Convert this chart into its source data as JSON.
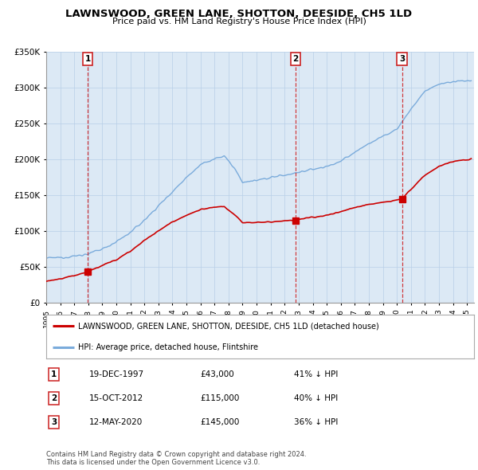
{
  "title": "LAWNSWOOD, GREEN LANE, SHOTTON, DEESIDE, CH5 1LD",
  "subtitle": "Price paid vs. HM Land Registry's House Price Index (HPI)",
  "ylabel_ticks": [
    "£0",
    "£50K",
    "£100K",
    "£150K",
    "£200K",
    "£250K",
    "£300K",
    "£350K"
  ],
  "ylim": [
    0,
    350000
  ],
  "xlim_start": 1995.0,
  "xlim_end": 2025.5,
  "sale_dates": [
    1997.96,
    2012.79,
    2020.36
  ],
  "sale_prices": [
    43000,
    115000,
    145000
  ],
  "sale_labels": [
    "1",
    "2",
    "3"
  ],
  "legend_red": "LAWNSWOOD, GREEN LANE, SHOTTON, DEESIDE, CH5 1LD (detached house)",
  "legend_blue": "HPI: Average price, detached house, Flintshire",
  "table_rows": [
    [
      "1",
      "19-DEC-1997",
      "£43,000",
      "41% ↓ HPI"
    ],
    [
      "2",
      "15-OCT-2012",
      "£115,000",
      "40% ↓ HPI"
    ],
    [
      "3",
      "12-MAY-2020",
      "£145,000",
      "36% ↓ HPI"
    ]
  ],
  "footnote": "Contains HM Land Registry data © Crown copyright and database right 2024.\nThis data is licensed under the Open Government Licence v3.0.",
  "red_color": "#cc0000",
  "blue_color": "#7aabdb",
  "dashed_color": "#cc0000",
  "chart_bg": "#dce9f5",
  "background_color": "#ffffff",
  "grid_color": "#b8cfe8"
}
